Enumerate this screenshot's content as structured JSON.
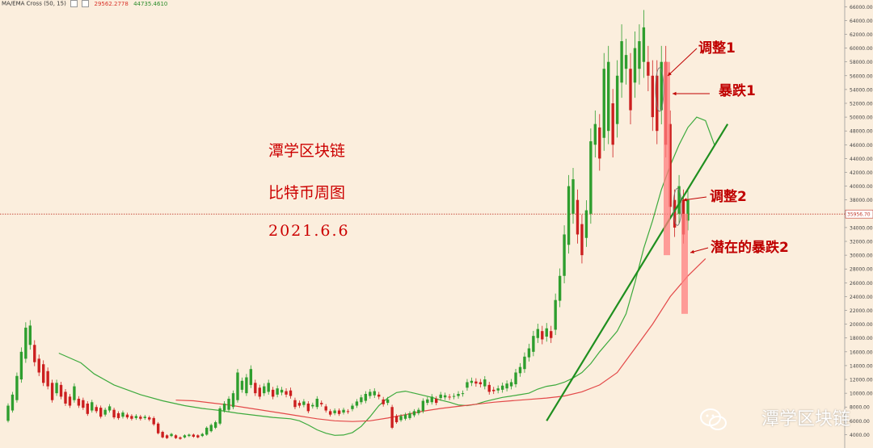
{
  "legend": {
    "indicator": "MA/EMA Cross (50, 15)",
    "value_red": "29562.2778",
    "value_green": "44735.4610"
  },
  "overlay_text": {
    "line1": "潭学区块链",
    "line2": "比特币周图",
    "line3": "2021.6.6"
  },
  "annotations": {
    "adjust1": "调整1",
    "crash1": "暴跌1",
    "adjust2": "调整2",
    "potential_crash2": "潜在的暴跌2"
  },
  "watermark": "潭学区块链",
  "current_price_label": "35956.70",
  "colors": {
    "background": "#fbeedd",
    "up": "#2e9e2e",
    "down": "#cc1f1f",
    "ema_fast": "#3daa3d",
    "ema_slow": "#e34848",
    "trend": "#1f8f1f",
    "annotation": "#c00000",
    "highlight": "#ff7f7f"
  },
  "chart_data": {
    "type": "candlestick",
    "y_axis": {
      "ylim": [
        3000,
        66500
      ],
      "ticks": [
        4000,
        6000,
        8000,
        10000,
        12000,
        14000,
        16000,
        18000,
        20000,
        22000,
        24000,
        26000,
        28000,
        30000,
        32000,
        34000,
        36000,
        38000,
        40000,
        42000,
        44000,
        46000,
        48000,
        50000,
        52000,
        54000,
        56000,
        58000,
        60000,
        62000,
        64000,
        66000
      ],
      "tick_labels": [
        "4000.00",
        "6000.00",
        "8000.00",
        "10000.00",
        "12000.00",
        "14000.00",
        "16000.00",
        "18000.00",
        "20000.00",
        "22000.00",
        "24000.00",
        "26000.00",
        "28000.00",
        "30000.00",
        "32000.00",
        "34000.00",
        "36000.00",
        "38000.00",
        "40000.00",
        "42000.00",
        "44000.00",
        "46000.00",
        "48000.00",
        "50000.00",
        "52000.00",
        "54000.00",
        "56000.00",
        "58000.00",
        "60000.00",
        "62000.00",
        "64000.00",
        "66000.00"
      ]
    },
    "current_price": 35956.7,
    "grid": false,
    "weeks": [
      [
        6000,
        8200
      ],
      [
        7500,
        9800
      ],
      [
        9000,
        12500
      ],
      [
        12000,
        16000
      ],
      [
        15000,
        19500
      ],
      [
        17000,
        19800
      ],
      [
        14500,
        17000
      ],
      [
        13000,
        15000
      ],
      [
        11500,
        14200
      ],
      [
        11000,
        13200
      ],
      [
        9000,
        11500
      ],
      [
        10000,
        11500
      ],
      [
        9500,
        11200
      ],
      [
        8500,
        10200
      ],
      [
        8200,
        9500
      ],
      [
        9000,
        11000
      ],
      [
        8200,
        9200
      ],
      [
        7900,
        9000
      ],
      [
        7000,
        8500
      ],
      [
        7500,
        8700
      ],
      [
        7400,
        8000
      ],
      [
        6600,
        7900
      ],
      [
        6900,
        7600
      ],
      [
        7500,
        8100
      ],
      [
        6500,
        7600
      ],
      [
        6400,
        7100
      ],
      [
        6600,
        7200
      ],
      [
        6500,
        6900
      ],
      [
        6300,
        6700
      ],
      [
        6400,
        6700
      ],
      [
        6300,
        6600
      ],
      [
        6400,
        6600
      ],
      [
        6200,
        6500
      ],
      [
        5500,
        6400
      ],
      [
        4200,
        5600
      ],
      [
        3600,
        4400
      ],
      [
        3500,
        3900
      ],
      [
        3800,
        4100
      ],
      [
        3500,
        3900
      ],
      [
        3400,
        3600
      ],
      [
        3600,
        3900
      ],
      [
        3800,
        4000
      ],
      [
        3700,
        4000
      ],
      [
        3600,
        3900
      ],
      [
        3800,
        4100
      ],
      [
        4000,
        5000
      ],
      [
        4500,
        5400
      ],
      [
        5000,
        5800
      ],
      [
        5600,
        7800
      ],
      [
        7500,
        8500
      ],
      [
        7600,
        9200
      ],
      [
        8000,
        10000
      ],
      [
        9000,
        13000
      ],
      [
        10500,
        11800
      ],
      [
        10000,
        12300
      ],
      [
        11200,
        13500
      ],
      [
        10000,
        11500
      ],
      [
        9500,
        10800
      ],
      [
        10000,
        11000
      ],
      [
        10200,
        11500
      ],
      [
        9500,
        10500
      ],
      [
        9800,
        10700
      ],
      [
        10100,
        10500
      ],
      [
        9800,
        10300
      ],
      [
        9600,
        10400
      ],
      [
        8000,
        9000
      ],
      [
        8200,
        8600
      ],
      [
        8300,
        8800
      ],
      [
        7400,
        8500
      ],
      [
        8100,
        8300
      ],
      [
        8000,
        9200
      ],
      [
        8400,
        8600
      ],
      [
        7500,
        8100
      ],
      [
        6900,
        7400
      ],
      [
        7100,
        7500
      ],
      [
        7000,
        7500
      ],
      [
        7200,
        7600
      ],
      [
        7300,
        7400
      ],
      [
        7700,
        8200
      ],
      [
        8200,
        8800
      ],
      [
        8700,
        9400
      ],
      [
        8900,
        9900
      ],
      [
        9600,
        10200
      ],
      [
        9700,
        10300
      ],
      [
        9500,
        9800
      ],
      [
        8400,
        9100
      ],
      [
        8600,
        9100
      ],
      [
        5000,
        8000
      ],
      [
        5800,
        6700
      ],
      [
        6100,
        6700
      ],
      [
        6300,
        6900
      ],
      [
        6400,
        7100
      ],
      [
        6800,
        7400
      ],
      [
        7100,
        7600
      ],
      [
        7400,
        8900
      ],
      [
        8600,
        9100
      ],
      [
        8700,
        9500
      ],
      [
        8600,
        9200
      ],
      [
        9300,
        9800
      ],
      [
        9400,
        9700
      ],
      [
        9400,
        9500
      ],
      [
        9500,
        9600
      ],
      [
        9600,
        9900
      ],
      [
        9900,
        10000
      ],
      [
        10800,
        11600
      ],
      [
        11500,
        11800
      ],
      [
        11400,
        11700
      ],
      [
        11300,
        11600
      ],
      [
        11000,
        12000
      ],
      [
        10200,
        11200
      ],
      [
        10300,
        10500
      ],
      [
        10400,
        10700
      ],
      [
        10500,
        11100
      ],
      [
        10700,
        11400
      ],
      [
        11000,
        11600
      ],
      [
        11300,
        13000
      ],
      [
        12900,
        13800
      ],
      [
        13500,
        15300
      ],
      [
        15200,
        16500
      ],
      [
        16000,
        18300
      ],
      [
        18000,
        19300
      ],
      [
        17800,
        19000
      ],
      [
        18200,
        19400
      ],
      [
        18000,
        19000
      ],
      [
        19200,
        23500
      ],
      [
        23400,
        27000
      ],
      [
        27000,
        33000
      ],
      [
        31500,
        40000
      ],
      [
        36000,
        41000
      ],
      [
        33000,
        38000
      ],
      [
        30000,
        34500
      ],
      [
        32500,
        36500
      ],
      [
        36000,
        46500
      ],
      [
        46000,
        49000
      ],
      [
        44000,
        48500
      ],
      [
        47000,
        57000
      ],
      [
        48000,
        58000
      ],
      [
        46000,
        52000
      ],
      [
        49000,
        56000
      ],
      [
        55000,
        61000
      ],
      [
        57000,
        59000
      ],
      [
        51000,
        57000
      ],
      [
        55000,
        60000
      ],
      [
        57000,
        61000
      ],
      [
        58000,
        63000
      ],
      [
        56000,
        58000
      ],
      [
        50000,
        56000
      ],
      [
        48000,
        56000
      ],
      [
        51000,
        58000
      ],
      [
        46000,
        58000
      ],
      [
        37000,
        49000
      ],
      [
        34000,
        38000
      ],
      [
        36000,
        40000
      ],
      [
        33000,
        38000
      ],
      [
        35000,
        38000
      ]
    ],
    "series": [
      {
        "name": "EMA 15",
        "values": [
          [
            11500,
            15800
          ],
          [
            16500,
            14400
          ],
          [
            19500,
            12800
          ],
          [
            24000,
            11200
          ],
          [
            30000,
            9800
          ],
          [
            35000,
            8900
          ],
          [
            40000,
            8200
          ],
          [
            44000,
            7800
          ],
          [
            48000,
            7500
          ],
          [
            52000,
            7100
          ],
          [
            56000,
            6800
          ],
          [
            60000,
            6500
          ],
          [
            64000,
            6300
          ],
          [
            66000,
            6000
          ],
          [
            68000,
            5400
          ],
          [
            70000,
            4700
          ],
          [
            72000,
            4200
          ],
          [
            74000,
            3900
          ],
          [
            76000,
            3950
          ],
          [
            78000,
            4300
          ],
          [
            80000,
            5200
          ],
          [
            82000,
            6600
          ],
          [
            84000,
            8200
          ],
          [
            86000,
            9300
          ],
          [
            88000,
            10100
          ],
          [
            90000,
            10300
          ],
          [
            92000,
            10000
          ],
          [
            94000,
            9700
          ],
          [
            96000,
            9400
          ],
          [
            98000,
            9000
          ],
          [
            100000,
            8700
          ],
          [
            102000,
            8300
          ],
          [
            104000,
            8200
          ],
          [
            106000,
            8400
          ],
          [
            108000,
            8800
          ],
          [
            110000,
            9100
          ],
          [
            112000,
            9400
          ],
          [
            114000,
            9600
          ],
          [
            116000,
            9800
          ],
          [
            118000,
            10000
          ],
          [
            120000,
            10600
          ],
          [
            122000,
            11000
          ],
          [
            124000,
            11200
          ],
          [
            126000,
            11600
          ],
          [
            128000,
            12200
          ],
          [
            130000,
            13000
          ],
          [
            132000,
            14300
          ],
          [
            134000,
            16000
          ],
          [
            136000,
            17500
          ],
          [
            138000,
            19000
          ],
          [
            140000,
            21500
          ],
          [
            142000,
            26000
          ],
          [
            144000,
            31000
          ],
          [
            146000,
            35000
          ],
          [
            148000,
            39500
          ],
          [
            150000,
            43000
          ],
          [
            152000,
            46000
          ],
          [
            154000,
            48500
          ],
          [
            156000,
            50000
          ],
          [
            158000,
            49500
          ],
          [
            160000,
            46000
          ]
        ]
      },
      {
        "name": "EMA 50",
        "values": [
          [
            38000,
            9000
          ],
          [
            42000,
            8900
          ],
          [
            46000,
            8600
          ],
          [
            50000,
            8300
          ],
          [
            54000,
            7900
          ],
          [
            58000,
            7500
          ],
          [
            62000,
            7100
          ],
          [
            66000,
            6700
          ],
          [
            70000,
            6300
          ],
          [
            74000,
            6000
          ],
          [
            78000,
            5900
          ],
          [
            82000,
            6000
          ],
          [
            86000,
            6400
          ],
          [
            90000,
            6900
          ],
          [
            94000,
            7400
          ],
          [
            98000,
            7800
          ],
          [
            102000,
            8100
          ],
          [
            106000,
            8400
          ],
          [
            110000,
            8700
          ],
          [
            114000,
            8900
          ],
          [
            118000,
            9100
          ],
          [
            122000,
            9300
          ],
          [
            126000,
            9600
          ],
          [
            130000,
            10200
          ],
          [
            134000,
            11200
          ],
          [
            138000,
            13000
          ],
          [
            142000,
            16500
          ],
          [
            146000,
            20000
          ],
          [
            150000,
            24000
          ],
          [
            154000,
            27000
          ],
          [
            158000,
            29500
          ]
        ]
      }
    ],
    "trendline": {
      "from": [
        122000,
        6000
      ],
      "to": [
        163000,
        49000
      ]
    }
  }
}
